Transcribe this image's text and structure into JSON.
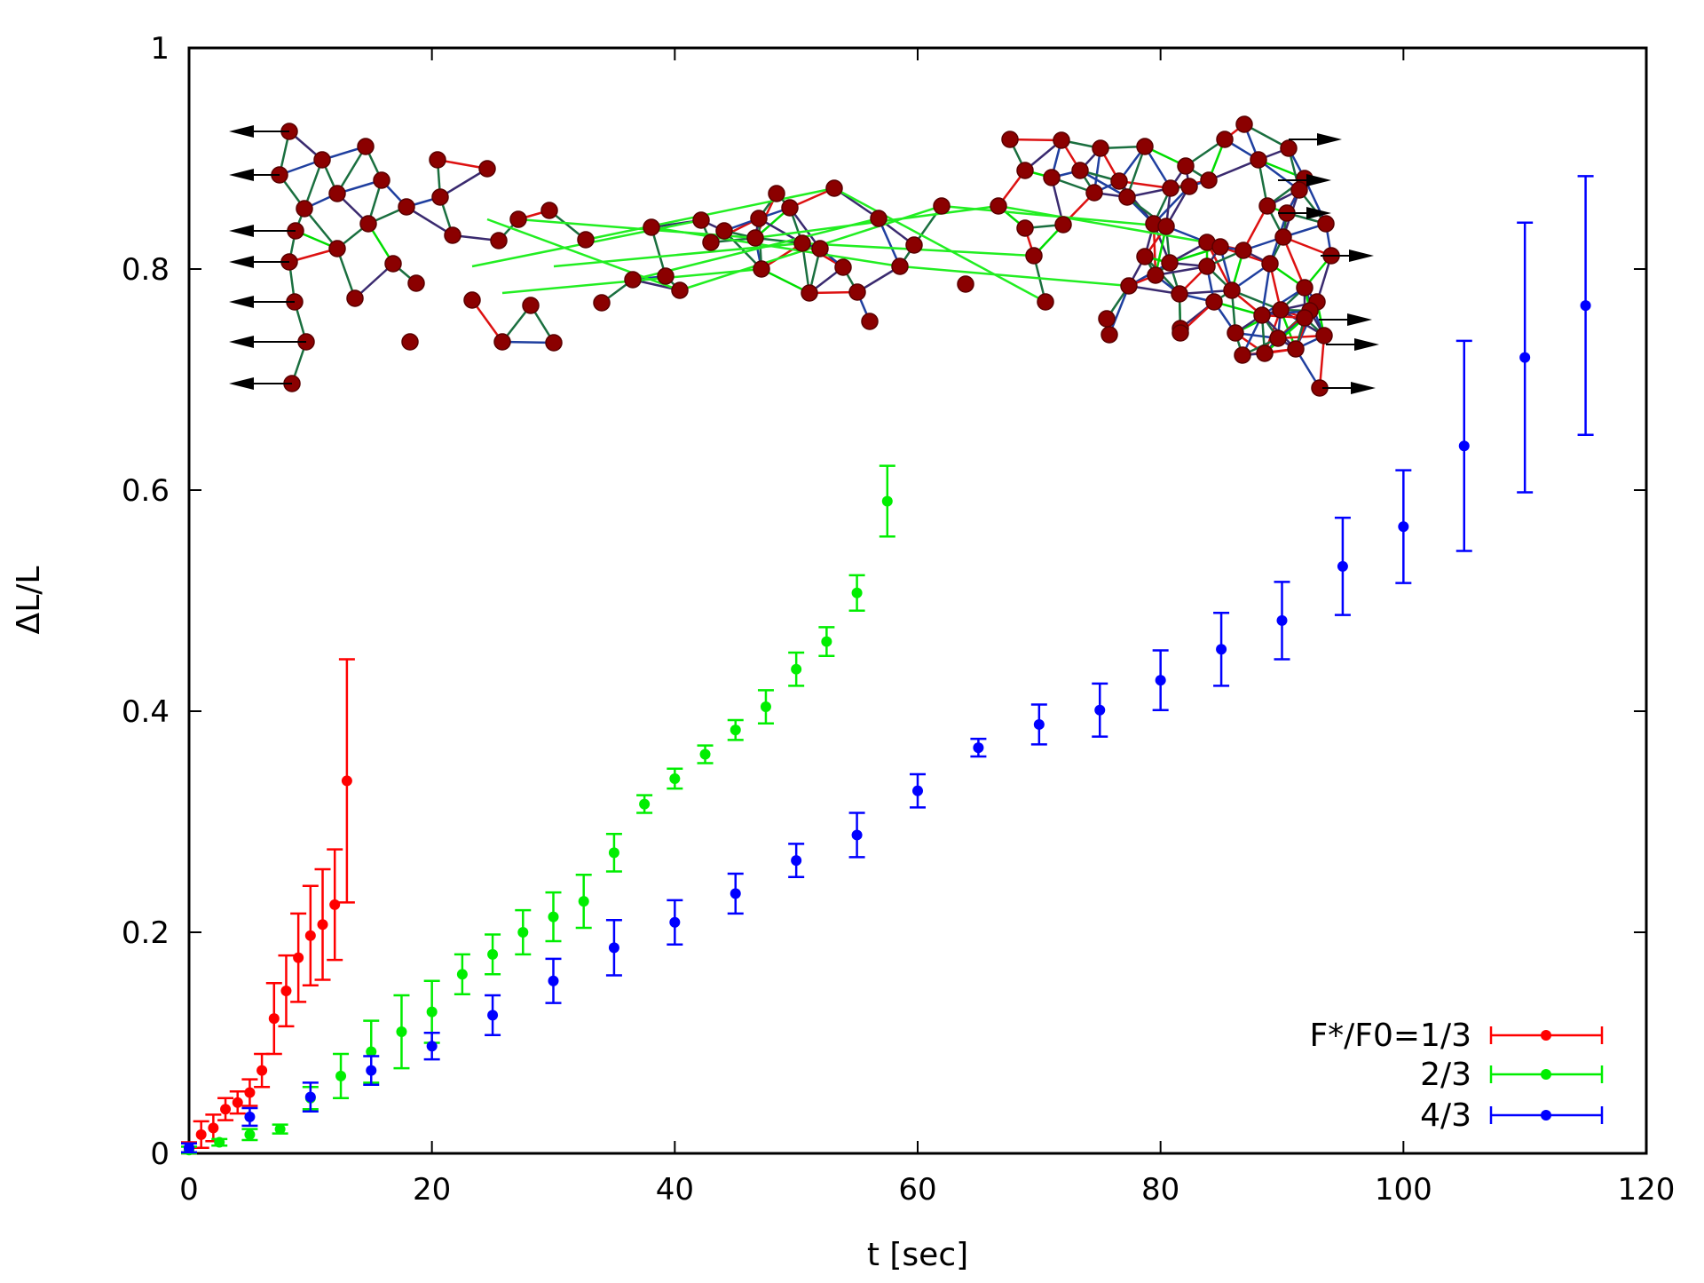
{
  "chart_data": {
    "type": "scatter",
    "title": "",
    "xlabel": "t [sec]",
    "ylabel": "ΔL/L",
    "xlim": [
      0,
      120
    ],
    "ylim": [
      0,
      1
    ],
    "xticks": [
      "0",
      "20",
      "40",
      "60",
      "80",
      "100",
      "120"
    ],
    "yticks": [
      "0",
      "0.2",
      "0.4",
      "0.6",
      "0.8",
      "1"
    ],
    "xtick_values": [
      0,
      20,
      40,
      60,
      80,
      100,
      120
    ],
    "ytick_values": [
      0,
      0.2,
      0.4,
      0.6,
      0.8,
      1
    ],
    "grid": false,
    "legend_position": "bottom-right",
    "legend_title_prefix": "F*/F0=",
    "inset": "bead-spring network under tension (illustration)",
    "series": [
      {
        "name": "1/3",
        "legend": "F*/F0=1/3",
        "color": "#ff0000",
        "points": [
          {
            "x": 0,
            "y": 0.005,
            "err": 0.005
          },
          {
            "x": 1,
            "y": 0.017,
            "err": 0.012
          },
          {
            "x": 2,
            "y": 0.023,
            "err": 0.012
          },
          {
            "x": 3,
            "y": 0.04,
            "err": 0.01
          },
          {
            "x": 4,
            "y": 0.046,
            "err": 0.01
          },
          {
            "x": 5,
            "y": 0.055,
            "err": 0.012
          },
          {
            "x": 6,
            "y": 0.075,
            "err": 0.015
          },
          {
            "x": 7,
            "y": 0.122,
            "err": 0.032
          },
          {
            "x": 8,
            "y": 0.147,
            "err": 0.032
          },
          {
            "x": 9,
            "y": 0.177,
            "err": 0.04
          },
          {
            "x": 10,
            "y": 0.197,
            "err": 0.045
          },
          {
            "x": 11,
            "y": 0.207,
            "err": 0.05
          },
          {
            "x": 12,
            "y": 0.225,
            "err": 0.05
          },
          {
            "x": 13,
            "y": 0.337,
            "err": 0.11
          }
        ]
      },
      {
        "name": "2/3",
        "legend": "2/3",
        "color": "#00ee00",
        "points": [
          {
            "x": 0,
            "y": 0.003,
            "err": 0.003
          },
          {
            "x": 2.5,
            "y": 0.01,
            "err": 0.003
          },
          {
            "x": 5,
            "y": 0.017,
            "err": 0.005
          },
          {
            "x": 7.5,
            "y": 0.022,
            "err": 0.004
          },
          {
            "x": 10,
            "y": 0.05,
            "err": 0.01
          },
          {
            "x": 12.5,
            "y": 0.07,
            "err": 0.02
          },
          {
            "x": 15,
            "y": 0.092,
            "err": 0.028
          },
          {
            "x": 17.5,
            "y": 0.11,
            "err": 0.033
          },
          {
            "x": 20,
            "y": 0.128,
            "err": 0.028
          },
          {
            "x": 22.5,
            "y": 0.162,
            "err": 0.018
          },
          {
            "x": 25,
            "y": 0.18,
            "err": 0.018
          },
          {
            "x": 27.5,
            "y": 0.2,
            "err": 0.02
          },
          {
            "x": 30,
            "y": 0.214,
            "err": 0.022
          },
          {
            "x": 32.5,
            "y": 0.228,
            "err": 0.024
          },
          {
            "x": 35,
            "y": 0.272,
            "err": 0.017
          },
          {
            "x": 37.5,
            "y": 0.316,
            "err": 0.008
          },
          {
            "x": 40,
            "y": 0.339,
            "err": 0.009
          },
          {
            "x": 42.5,
            "y": 0.361,
            "err": 0.008
          },
          {
            "x": 45,
            "y": 0.383,
            "err": 0.009
          },
          {
            "x": 47.5,
            "y": 0.404,
            "err": 0.015
          },
          {
            "x": 50,
            "y": 0.438,
            "err": 0.015
          },
          {
            "x": 52.5,
            "y": 0.463,
            "err": 0.013
          },
          {
            "x": 55,
            "y": 0.507,
            "err": 0.016
          },
          {
            "x": 57.5,
            "y": 0.59,
            "err": 0.032
          }
        ]
      },
      {
        "name": "4/3",
        "legend": "4/3",
        "color": "#0000ff",
        "points": [
          {
            "x": 0,
            "y": 0.005,
            "err": 0.004
          },
          {
            "x": 5,
            "y": 0.033,
            "err": 0.008
          },
          {
            "x": 10,
            "y": 0.051,
            "err": 0.013
          },
          {
            "x": 15,
            "y": 0.075,
            "err": 0.013
          },
          {
            "x": 20,
            "y": 0.097,
            "err": 0.012
          },
          {
            "x": 25,
            "y": 0.125,
            "err": 0.018
          },
          {
            "x": 30,
            "y": 0.156,
            "err": 0.02
          },
          {
            "x": 35,
            "y": 0.186,
            "err": 0.025
          },
          {
            "x": 40,
            "y": 0.209,
            "err": 0.02
          },
          {
            "x": 45,
            "y": 0.235,
            "err": 0.018
          },
          {
            "x": 50,
            "y": 0.265,
            "err": 0.015
          },
          {
            "x": 55,
            "y": 0.288,
            "err": 0.02
          },
          {
            "x": 60,
            "y": 0.328,
            "err": 0.015
          },
          {
            "x": 65,
            "y": 0.367,
            "err": 0.008
          },
          {
            "x": 70,
            "y": 0.388,
            "err": 0.018
          },
          {
            "x": 75,
            "y": 0.401,
            "err": 0.024
          },
          {
            "x": 80,
            "y": 0.428,
            "err": 0.027
          },
          {
            "x": 85,
            "y": 0.456,
            "err": 0.033
          },
          {
            "x": 90,
            "y": 0.482,
            "err": 0.035
          },
          {
            "x": 95,
            "y": 0.531,
            "err": 0.044
          },
          {
            "x": 100,
            "y": 0.567,
            "err": 0.051
          },
          {
            "x": 105,
            "y": 0.64,
            "err": 0.095
          },
          {
            "x": 110,
            "y": 0.72,
            "err": 0.122
          },
          {
            "x": 115,
            "y": 0.767,
            "err": 0.117
          }
        ]
      }
    ]
  }
}
